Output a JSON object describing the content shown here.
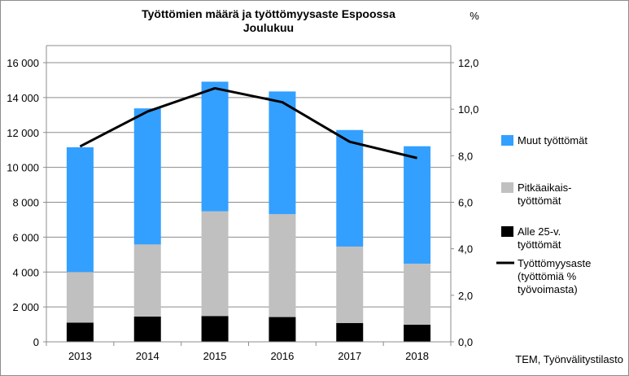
{
  "chart_data": {
    "type": "bar",
    "stacked": true,
    "title_lines": [
      "Työttömien  määrä ja työttömyysaste  Espoossa",
      "Joulukuu"
    ],
    "right_axis_unit": "%",
    "categories": [
      "2013",
      "2014",
      "2015",
      "2016",
      "2017",
      "2018"
    ],
    "series": [
      {
        "name": "Alle 25-v. työttömät",
        "legend_lines": [
          "Alle 25-v.",
          "työttömät"
        ],
        "type": "bar",
        "color": "#000000",
        "values": [
          1100,
          1450,
          1480,
          1420,
          1080,
          980
        ]
      },
      {
        "name": "Pitkäaikaistyöttömät",
        "legend_lines": [
          "Pitkäaikais-",
          "työttömät"
        ],
        "type": "bar",
        "color": "#c0c0c0",
        "values": [
          2900,
          4130,
          6000,
          5900,
          4380,
          3500
        ]
      },
      {
        "name": "Muut työttömät",
        "legend_lines": [
          "Muut työttömät"
        ],
        "type": "bar",
        "color": "#33a0ff",
        "values": [
          7150,
          7800,
          7430,
          7030,
          6680,
          6730
        ]
      },
      {
        "name": "Työttömyysaste (työttömiä % työvoimasta)",
        "legend_lines": [
          "Työttömyysaste",
          "(työttömiä %",
          "työvoimasta)"
        ],
        "type": "line",
        "axis": "right",
        "color": "#000000",
        "values": [
          8.4,
          9.9,
          10.9,
          10.3,
          8.6,
          7.9
        ]
      }
    ],
    "left_axis": {
      "min": 0,
      "max": 16000,
      "step": 2000,
      "tick_labels": [
        "0",
        "2 000",
        "4 000",
        "6 000",
        "8 000",
        "10 000",
        "12 000",
        "14 000",
        "16 000"
      ]
    },
    "right_axis": {
      "min": 0,
      "max": 12,
      "step": 2,
      "tick_labels": [
        "0,0",
        "2,0",
        "4,0",
        "6,0",
        "8,0",
        "10,0",
        "12,0"
      ]
    },
    "grid": true,
    "legend_position": "right",
    "source_note": "TEM, Työnvälitystilasto"
  }
}
